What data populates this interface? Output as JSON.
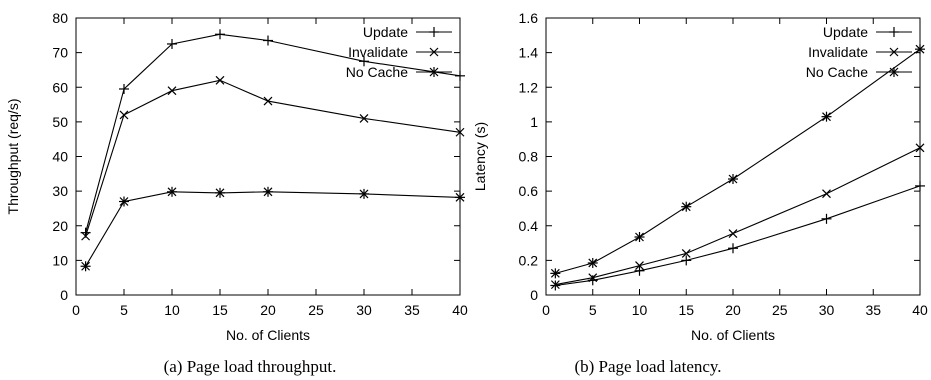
{
  "chart_data": [
    {
      "type": "line",
      "caption": "(a) Page load throughput.",
      "xlabel": "No. of Clients",
      "ylabel": "Throughput (req/s)",
      "xlim": [
        0,
        40
      ],
      "ylim": [
        0,
        80
      ],
      "xticks": [
        0,
        5,
        10,
        15,
        20,
        25,
        30,
        35,
        40
      ],
      "yticks": [
        0,
        10,
        20,
        30,
        40,
        50,
        60,
        70,
        80
      ],
      "xtick_labels": [
        "0",
        "5",
        "10",
        "15",
        "20",
        "25",
        "30",
        "35",
        "40"
      ],
      "ytick_labels": [
        "0",
        "10",
        "20",
        "30",
        "40",
        "50",
        "60",
        "70",
        "80"
      ],
      "grid": false,
      "legend_position": "top-right",
      "x": [
        1,
        5,
        10,
        15,
        20,
        30,
        40
      ],
      "series": [
        {
          "name": "Update",
          "marker": "plus",
          "values": [
            18,
            59.5,
            72.5,
            75.3,
            73.5,
            67.5,
            63.3
          ]
        },
        {
          "name": "Invalidate",
          "marker": "cross",
          "values": [
            17,
            52,
            59,
            62,
            56,
            51,
            47
          ]
        },
        {
          "name": "No Cache",
          "marker": "star",
          "values": [
            8.3,
            27,
            29.8,
            29.5,
            29.8,
            29.2,
            28.2
          ]
        }
      ]
    },
    {
      "type": "line",
      "caption": "(b) Page load latency.",
      "xlabel": "No. of Clients",
      "ylabel": "Latency (s)",
      "xlim": [
        0,
        40
      ],
      "ylim": [
        0,
        1.6
      ],
      "xticks": [
        0,
        5,
        10,
        15,
        20,
        25,
        30,
        35,
        40
      ],
      "yticks": [
        0,
        0.2,
        0.4,
        0.6,
        0.8,
        1,
        1.2,
        1.4,
        1.6
      ],
      "xtick_labels": [
        "0",
        "5",
        "10",
        "15",
        "20",
        "25",
        "30",
        "35",
        "40"
      ],
      "ytick_labels": [
        "0",
        "0.2",
        "0.4",
        "0.6",
        "0.8",
        "1",
        "1.2",
        "1.4",
        "1.6"
      ],
      "grid": false,
      "legend_position": "top-right",
      "x": [
        1,
        5,
        10,
        15,
        20,
        30,
        40
      ],
      "series": [
        {
          "name": "Update",
          "marker": "plus",
          "values": [
            0.055,
            0.085,
            0.14,
            0.2,
            0.27,
            0.44,
            0.63
          ]
        },
        {
          "name": "Invalidate",
          "marker": "cross",
          "values": [
            0.06,
            0.1,
            0.17,
            0.24,
            0.355,
            0.585,
            0.85
          ]
        },
        {
          "name": "No Cache",
          "marker": "star",
          "values": [
            0.125,
            0.185,
            0.335,
            0.51,
            0.67,
            1.03,
            1.42
          ]
        }
      ]
    }
  ]
}
